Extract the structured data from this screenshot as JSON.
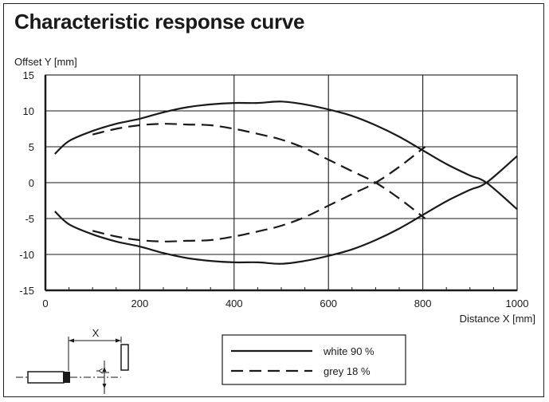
{
  "title": "Characteristic response curve",
  "chart_data": {
    "type": "line",
    "xlabel": "Distance X [mm]",
    "ylabel": "Offset Y [mm]",
    "xlim": [
      0,
      1000
    ],
    "ylim": [
      -15,
      15
    ],
    "xticks": [
      0,
      200,
      400,
      600,
      800,
      1000
    ],
    "yticks": [
      15,
      10,
      5,
      0,
      -5,
      -10,
      -15
    ],
    "grid": true,
    "legend_position": "bottom-center",
    "series": [
      {
        "name": "white 90 %",
        "style": "solid",
        "x": [
          20,
          50,
          100,
          150,
          200,
          250,
          300,
          350,
          400,
          450,
          500,
          550,
          600,
          650,
          700,
          750,
          800,
          850,
          900,
          935,
          1000
        ],
        "y": [
          4,
          5.8,
          7.2,
          8.2,
          8.9,
          9.8,
          10.5,
          10.9,
          11.1,
          11.1,
          11.3,
          10.9,
          10.2,
          9.3,
          8,
          6.4,
          4.5,
          2.6,
          1,
          0,
          -3.7
        ]
      },
      {
        "name": "white 90 %",
        "style": "solid",
        "x": [
          20,
          50,
          100,
          150,
          200,
          250,
          300,
          350,
          400,
          450,
          500,
          550,
          600,
          650,
          700,
          750,
          800,
          850,
          900,
          935,
          1000
        ],
        "y": [
          -4,
          -5.8,
          -7.2,
          -8.2,
          -8.9,
          -9.8,
          -10.5,
          -10.9,
          -11.1,
          -11.1,
          -11.3,
          -10.9,
          -10.2,
          -9.3,
          -8,
          -6.4,
          -4.5,
          -2.6,
          -1,
          0,
          3.7
        ]
      },
      {
        "name": "grey 18 %",
        "style": "dashed",
        "x": [
          100,
          150,
          200,
          250,
          300,
          350,
          400,
          450,
          500,
          550,
          600,
          650,
          700,
          750,
          805
        ],
        "y": [
          6.7,
          7.5,
          8,
          8.2,
          8.1,
          8,
          7.5,
          6.8,
          6,
          4.8,
          3.2,
          1.6,
          0,
          -2.2,
          -5
        ]
      },
      {
        "name": "grey 18 %",
        "style": "dashed",
        "x": [
          100,
          150,
          200,
          250,
          300,
          350,
          400,
          450,
          500,
          550,
          600,
          650,
          700,
          750,
          805
        ],
        "y": [
          -6.7,
          -7.5,
          -8,
          -8.2,
          -8.1,
          -8,
          -7.5,
          -6.8,
          -6,
          -4.8,
          -3.2,
          -1.6,
          0,
          2.2,
          5
        ]
      }
    ]
  },
  "legend": [
    {
      "label": "white 90 %",
      "style": "solid"
    },
    {
      "label": "grey 18 %",
      "style": "dashed"
    }
  ],
  "diagram": {
    "x_label": "X",
    "y_label": "Y"
  },
  "colors": {
    "line": "#1a1a1a",
    "grid": "#1a1a1a",
    "background": "#ffffff"
  }
}
